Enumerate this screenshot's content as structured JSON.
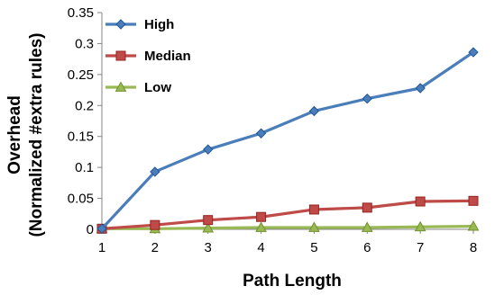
{
  "chart_data": {
    "type": "line",
    "title": "",
    "xlabel": "Path Length",
    "ylabel_lines": [
      "Overhead",
      "(Normalized #extra rules)"
    ],
    "x": [
      1,
      2,
      3,
      4,
      5,
      6,
      7,
      8
    ],
    "x_tick_labels": [
      "1",
      "2",
      "3",
      "4",
      "5",
      "6",
      "7",
      "8"
    ],
    "ylim": [
      0,
      0.35
    ],
    "y_ticks": [
      0,
      0.05,
      0.1,
      0.15,
      0.2,
      0.25,
      0.3,
      0.35
    ],
    "y_tick_labels": [
      "0",
      "0.05",
      "0.1",
      "0.15",
      "0.2",
      "0.25",
      "0.3",
      "0.35"
    ],
    "grid": false,
    "legend_position": "top-left",
    "series": [
      {
        "name": "High",
        "values": [
          0.001,
          0.093,
          0.129,
          0.155,
          0.191,
          0.211,
          0.228,
          0.286
        ],
        "color": "#4a7ebb",
        "marker": "diamond"
      },
      {
        "name": "Median",
        "values": [
          0.001,
          0.007,
          0.015,
          0.02,
          0.032,
          0.035,
          0.045,
          0.046
        ],
        "color": "#be4b48",
        "marker": "square"
      },
      {
        "name": "Low",
        "values": [
          0.001,
          0.001,
          0.002,
          0.003,
          0.003,
          0.003,
          0.004,
          0.005
        ],
        "color": "#98b954",
        "marker": "triangle"
      }
    ]
  }
}
